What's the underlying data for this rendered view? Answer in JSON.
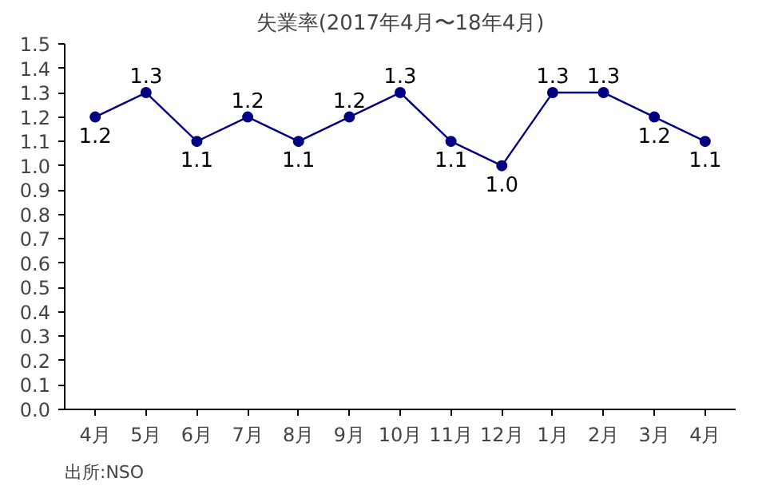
{
  "chart_data": {
    "type": "line",
    "title": "失業率(2017年4月〜18年4月)",
    "categories": [
      "4月",
      "5月",
      "6月",
      "7月",
      "8月",
      "9月",
      "10月",
      "11月",
      "12月",
      "1月",
      "2月",
      "3月",
      "4月"
    ],
    "series": [
      {
        "color": "#000080",
        "values": [
          1.2,
          1.3,
          1.1,
          1.2,
          1.1,
          1.2,
          1.3,
          1.1,
          1.0,
          1.3,
          1.3,
          1.2,
          1.1
        ],
        "value_labels": [
          "1.2",
          "1.3",
          "1.1",
          "1.2",
          "1.1",
          "1.2",
          "1.3",
          "1.1",
          "1.0",
          "1.3",
          "1.3",
          "1.2",
          "1.1"
        ]
      }
    ],
    "ylim": [
      0,
      1.5
    ],
    "yticks": [
      {
        "value": 0,
        "label": "0.0"
      },
      0.1,
      0.2,
      0.3,
      0.4,
      0.5,
      0.6,
      0.7,
      0.8,
      0.9,
      {
        "value": 1,
        "label": "1.0"
      },
      1.1,
      1.2,
      1.3,
      1.4,
      1.5
    ],
    "marker": "circle",
    "line_style": "solid",
    "grid": false,
    "annotations": [
      "出所:NSO"
    ]
  }
}
